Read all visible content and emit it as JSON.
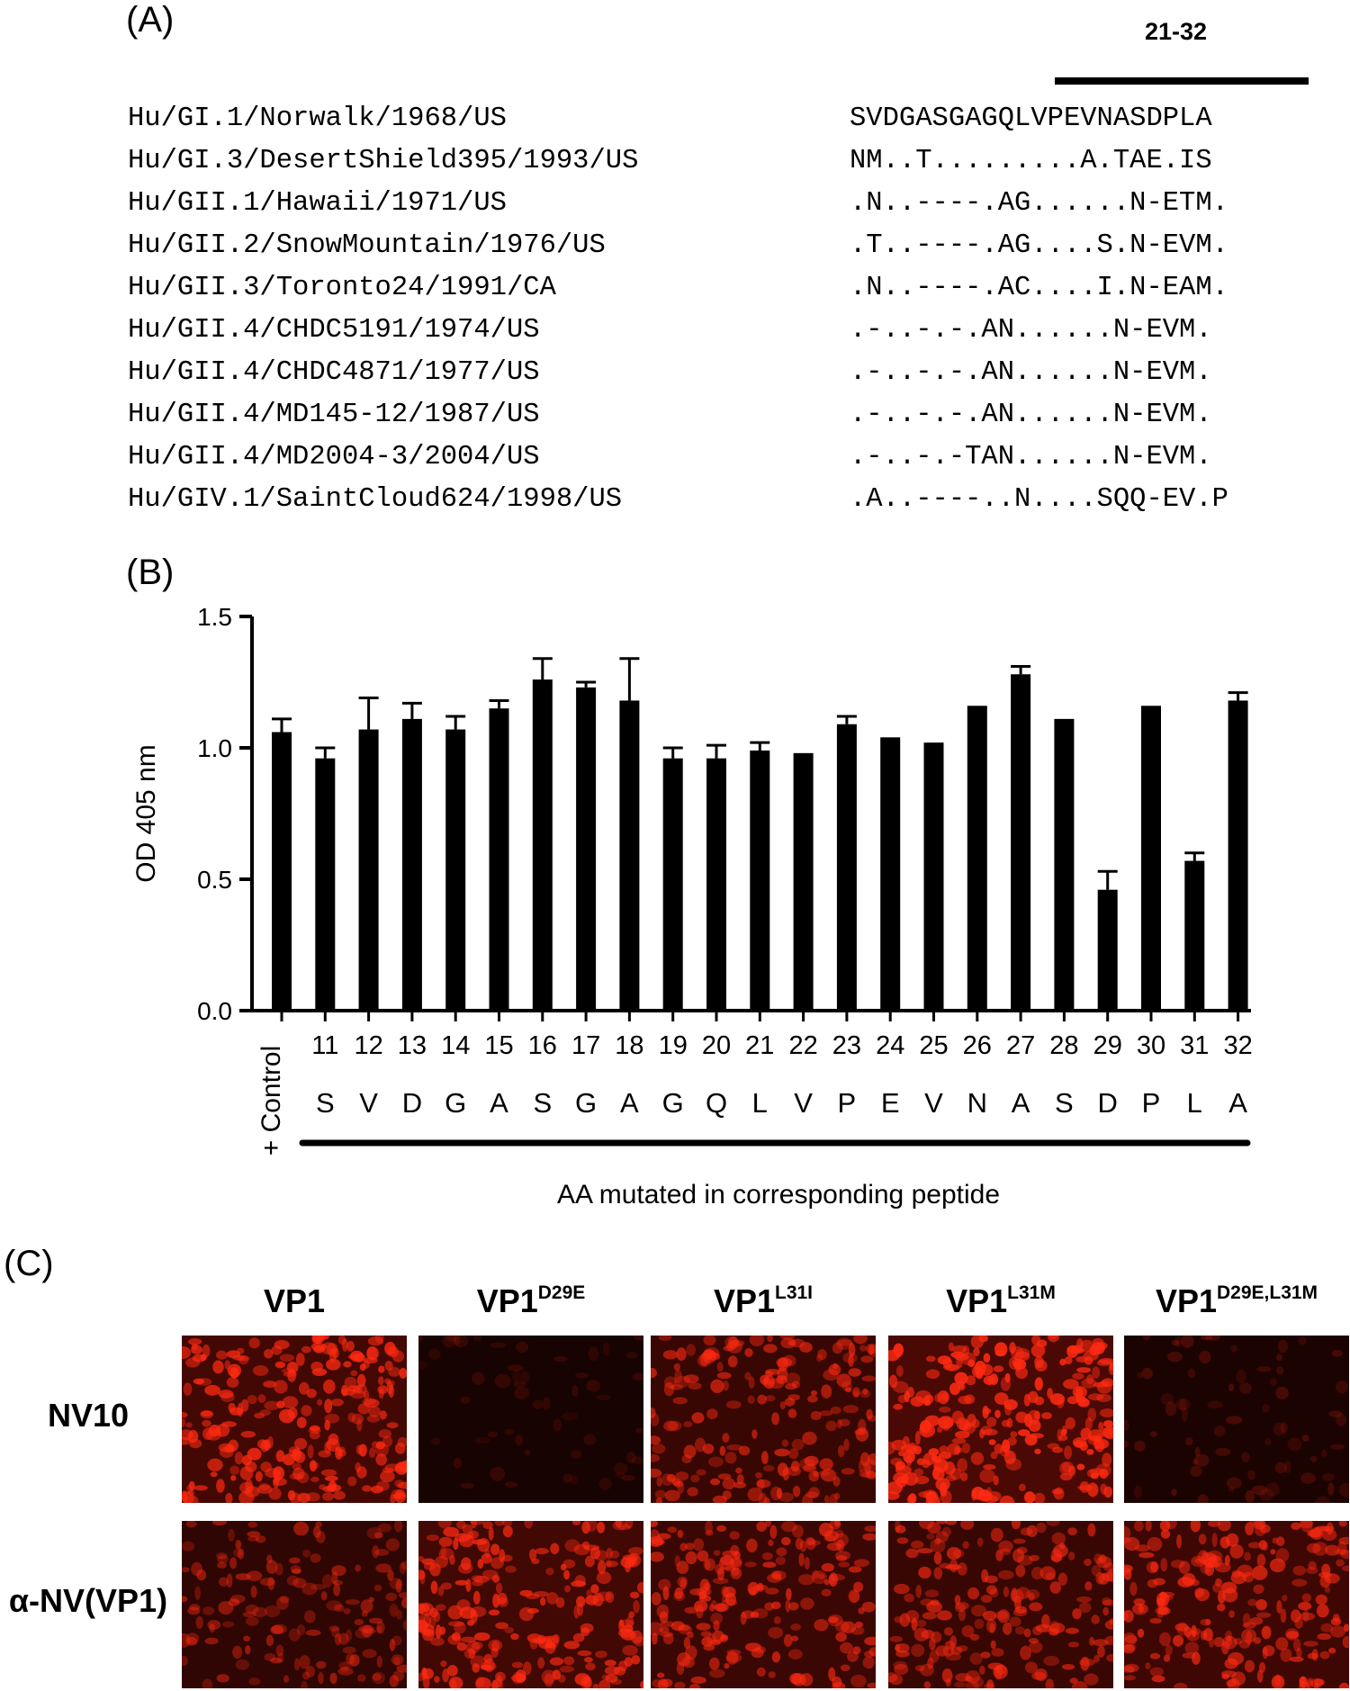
{
  "panel_a": {
    "label": "(A)",
    "region_label": "21-32",
    "sequences": [
      {
        "name": "Hu/GI.1/Norwalk/1968/US",
        "alignment": "SVDGASGAGQLVPEVNASDPLA"
      },
      {
        "name": "Hu/GI.3/DesertShield395/1993/US",
        "alignment": "NM..T.........A.TAE.IS"
      },
      {
        "name": "Hu/GII.1/Hawaii/1971/US",
        "alignment": ".N..----.AG......N-ETM."
      },
      {
        "name": "Hu/GII.2/SnowMountain/1976/US",
        "alignment": ".T..----.AG....S.N-EVM."
      },
      {
        "name": "Hu/GII.3/Toronto24/1991/CA",
        "alignment": ".N..----.AC....I.N-EAM."
      },
      {
        "name": "Hu/GII.4/CHDC5191/1974/US",
        "alignment": ".-..-.-.AN......N-EVM."
      },
      {
        "name": "Hu/GII.4/CHDC4871/1977/US",
        "alignment": ".-..-.-.AN......N-EVM."
      },
      {
        "name": "Hu/GII.4/MD145-12/1987/US",
        "alignment": ".-..-.-.AN......N-EVM."
      },
      {
        "name": "Hu/GII.4/MD2004-3/2004/US",
        "alignment": ".-..-.-TAN......N-EVM."
      },
      {
        "name": "Hu/GIV.1/SaintCloud624/1998/US",
        "alignment": ".A..----..N....SQQ-EV.P"
      }
    ]
  },
  "panel_b": {
    "label": "(B)"
  },
  "chart_data": {
    "type": "bar",
    "ylabel": "OD 405 nm",
    "xlabel": "AA mutated in corresponding peptide",
    "ylim": [
      0,
      1.5
    ],
    "yticks": [
      "0.0",
      "0.5",
      "1.0",
      "1.5"
    ],
    "control_label": "+ Control",
    "categories": [
      "+ Control",
      "11",
      "12",
      "13",
      "14",
      "15",
      "16",
      "17",
      "18",
      "19",
      "20",
      "21",
      "22",
      "23",
      "24",
      "25",
      "26",
      "27",
      "28",
      "29",
      "30",
      "31",
      "32"
    ],
    "residues": [
      "",
      "S",
      "V",
      "D",
      "G",
      "A",
      "S",
      "G",
      "A",
      "G",
      "Q",
      "L",
      "V",
      "P",
      "E",
      "V",
      "N",
      "A",
      "S",
      "D",
      "P",
      "L",
      "A"
    ],
    "values": [
      1.06,
      0.96,
      1.07,
      1.11,
      1.07,
      1.15,
      1.26,
      1.23,
      1.18,
      0.96,
      0.96,
      0.99,
      0.98,
      1.09,
      1.04,
      1.02,
      1.16,
      1.28,
      1.11,
      0.46,
      1.16,
      0.57,
      1.18
    ],
    "errors": [
      0.05,
      0.04,
      0.12,
      0.06,
      0.05,
      0.03,
      0.08,
      0.02,
      0.16,
      0.04,
      0.05,
      0.03,
      0.0,
      0.03,
      0.0,
      0.0,
      0.0,
      0.03,
      0.0,
      0.07,
      0.0,
      0.03,
      0.03
    ]
  },
  "panel_c": {
    "label": "(C)",
    "columns": [
      {
        "base": "VP1",
        "sup": ""
      },
      {
        "base": "VP1",
        "sup": "D29E"
      },
      {
        "base": "VP1",
        "sup": "L31I"
      },
      {
        "base": "VP1",
        "sup": "L31M"
      },
      {
        "base": "VP1",
        "sup": "D29E,L31M"
      }
    ],
    "rows": [
      "NV10",
      "α-NV(VP1)"
    ],
    "fluorescence_levels": [
      [
        0.8,
        0.05,
        0.6,
        0.9,
        0.12
      ],
      [
        0.45,
        0.75,
        0.65,
        0.6,
        0.7
      ]
    ],
    "stain_color": "#ff2a12"
  }
}
